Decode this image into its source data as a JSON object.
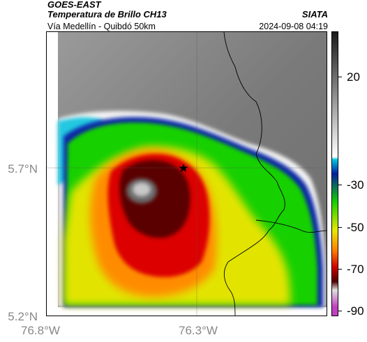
{
  "header": {
    "title": "GOES-EAST",
    "subtitle": "Temperatura de Brillo CH13",
    "org": "SIATA",
    "region": "Vía Medellín - Quibdó 50km",
    "timestamp": "2024-09-08 04:19"
  },
  "map": {
    "lat_ticks": [
      "5.7°N",
      "5.2°N"
    ],
    "lon_ticks": [
      "76.8°W",
      "76.3°W"
    ],
    "marker_icon": "star-icon"
  },
  "colorbar": {
    "labels": [
      "20",
      "-30",
      "-50",
      "-70",
      "-90"
    ],
    "colors": {
      "warm_gray": "#8c8c8c",
      "cyan": "#00c8e0",
      "blue": "#0020a0",
      "green": "#18d000",
      "yellow": "#e8e800",
      "orange": "#ff8000",
      "red": "#d00000",
      "dark_red": "#500000",
      "magenta": "#c040c0"
    }
  }
}
